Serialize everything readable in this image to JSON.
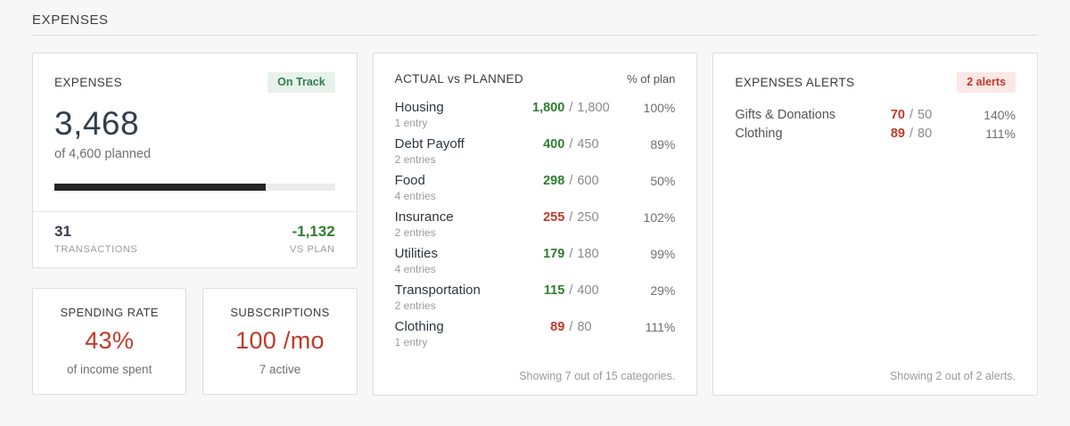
{
  "page": {
    "title": "EXPENSES"
  },
  "colors": {
    "green": "#2e7d32",
    "red": "#c0392b",
    "dark": "#333d4c"
  },
  "summary_card": {
    "title": "EXPENSES",
    "badge": "On Track",
    "total": "3,468",
    "subtitle": "of 4,600 planned",
    "progress_pct": 75.4,
    "stats": [
      {
        "value": "31",
        "label": "TRANSACTIONS",
        "color": "dark"
      },
      {
        "value": "-1,132",
        "label": "VS PLAN",
        "color": "green"
      }
    ]
  },
  "mini_cards": [
    {
      "title": "SPENDING RATE",
      "value": "43%",
      "caption": "of income spent"
    },
    {
      "title": "SUBSCRIPTIONS",
      "value": "100 /mo",
      "caption": "7 active"
    }
  ],
  "actual_vs_planned": {
    "title": "ACTUAL vs PLANNED",
    "column_header": "% of plan",
    "rows": [
      {
        "name": "Housing",
        "entries": "1 entry",
        "actual": "1,800",
        "planned": "1,800",
        "pct": "100%",
        "over": false
      },
      {
        "name": "Debt Payoff",
        "entries": "2 entries",
        "actual": "400",
        "planned": "450",
        "pct": "89%",
        "over": false
      },
      {
        "name": "Food",
        "entries": "4 entries",
        "actual": "298",
        "planned": "600",
        "pct": "50%",
        "over": false
      },
      {
        "name": "Insurance",
        "entries": "2 entries",
        "actual": "255",
        "planned": "250",
        "pct": "102%",
        "over": true
      },
      {
        "name": "Utilities",
        "entries": "4 entries",
        "actual": "179",
        "planned": "180",
        "pct": "99%",
        "over": false
      },
      {
        "name": "Transportation",
        "entries": "2 entries",
        "actual": "115",
        "planned": "400",
        "pct": "29%",
        "over": false
      },
      {
        "name": "Clothing",
        "entries": "1 entry",
        "actual": "89",
        "planned": "80",
        "pct": "111%",
        "over": true
      }
    ],
    "footer": "Showing 7 out of 15 categories."
  },
  "alerts_card": {
    "title": "EXPENSES ALERTS",
    "badge": "2 alerts",
    "rows": [
      {
        "name": "Gifts & Donations",
        "actual": "70",
        "planned": "50",
        "pct": "140%"
      },
      {
        "name": "Clothing",
        "actual": "89",
        "planned": "80",
        "pct": "111%"
      }
    ],
    "footer": "Showing 2 out of 2 alerts."
  }
}
